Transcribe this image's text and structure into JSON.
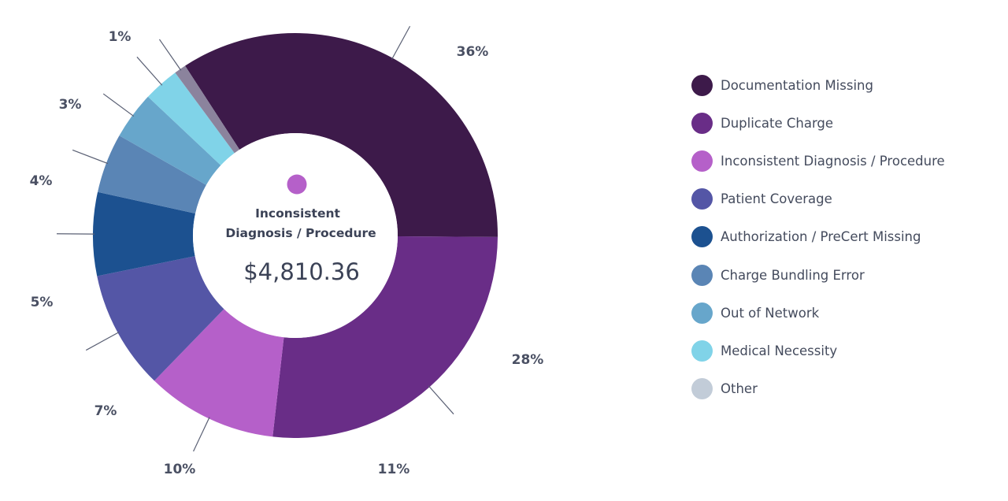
{
  "chart_data": {
    "type": "donut",
    "slices": [
      {
        "label": "Documentation Missing",
        "value": 36,
        "color": "#3d1a4a"
      },
      {
        "label": "Duplicate Charge",
        "value": 28,
        "color": "#692d87"
      },
      {
        "label": "Inconsistent Diagnosis / Procedure",
        "value": 11,
        "color": "#b560c9"
      },
      {
        "label": "Patient Coverage",
        "value": 10,
        "color": "#5456a6"
      },
      {
        "label": "Authorization / PreCert Missing",
        "value": 7,
        "color": "#1c5190"
      },
      {
        "label": "Charge Bundling Error",
        "value": 5,
        "color": "#5a85b5"
      },
      {
        "label": "Out of Network",
        "value": 4,
        "color": "#67a6cb"
      },
      {
        "label": "Medical Necessity",
        "value": 3,
        "color": "#80d3e8"
      },
      {
        "label": "Other",
        "value": 1,
        "color": "#8b839d"
      }
    ],
    "value_labels": [
      "36%",
      "28%",
      "11%",
      "10%",
      "7%",
      "5%",
      "4%",
      "3%",
      "1%"
    ],
    "legend_position": "right"
  },
  "legend": [
    {
      "label": "Documentation Missing",
      "color": "#3d1a4a"
    },
    {
      "label": "Duplicate Charge",
      "color": "#692d87"
    },
    {
      "label": "Inconsistent Diagnosis / Procedure",
      "color": "#b560c9"
    },
    {
      "label": "Patient Coverage",
      "color": "#5456a6"
    },
    {
      "label": "Authorization / PreCert Missing",
      "color": "#1c5190"
    },
    {
      "label": "Charge Bundling Error",
      "color": "#5a85b5"
    },
    {
      "label": "Out of Network",
      "color": "#67a6cb"
    },
    {
      "label": "Medical Necessity",
      "color": "#80d3e8"
    },
    {
      "label": "Other",
      "color": "#c2ccd8"
    }
  ],
  "center": {
    "title_line1": "Inconsistent",
    "title_line2": "Diagnosis / Procedure",
    "value": "$4,810.36",
    "dot_color": "#b560c9"
  }
}
